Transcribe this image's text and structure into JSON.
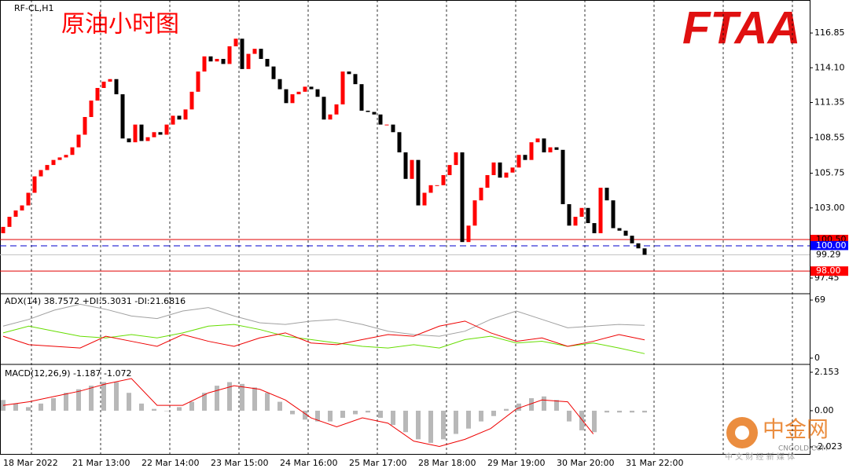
{
  "logo": "FTAA",
  "watermark": {
    "name": "中金网",
    "site": "CNGOLD.COM",
    "tagline": "中 文 财 经 新 媒 体"
  },
  "chart_data": [
    {
      "type": "candlestick",
      "title": "RF-CL,H1",
      "subtitle": "原油小时图",
      "categories": [
        "18 Mar 2022",
        null,
        null,
        null,
        null,
        null,
        null,
        null,
        null,
        null,
        null,
        "21 Mar 13:00",
        null,
        null,
        null,
        null,
        null,
        null,
        null,
        null,
        null,
        null,
        "22 Mar 14:00",
        null,
        null,
        null,
        null,
        null,
        null,
        null,
        null,
        null,
        null,
        "23 Mar 15:00",
        null,
        null,
        null,
        null,
        null,
        null,
        null,
        null,
        null,
        null,
        "24 Mar 16:00",
        null,
        null,
        null,
        null,
        null,
        null,
        null,
        null,
        null,
        null,
        "25 Mar 17:00",
        null,
        null,
        null,
        null,
        null,
        null,
        null,
        null,
        null,
        null,
        "28 Mar 18:00",
        null,
        null,
        null,
        null,
        null,
        null,
        null,
        null,
        null,
        null,
        "29 Mar 19:00",
        null,
        null,
        null,
        null,
        null,
        null,
        null,
        null,
        null,
        null,
        "30 Mar 20:00",
        null,
        null,
        null,
        null,
        null,
        null,
        null,
        null,
        null,
        null,
        "31 Mar 22:00",
        null,
        null,
        null
      ],
      "open": [
        101.0,
        101.5,
        102.3,
        102.8,
        103.2,
        104.2,
        105.5,
        106.0,
        106.4,
        106.8,
        107.0,
        107.2,
        107.8,
        108.8,
        110.2,
        111.5,
        112.5,
        113.0,
        113.2,
        112.0,
        108.5,
        108.2,
        109.6,
        108.3,
        108.6,
        109.0,
        108.8,
        109.6,
        110.3,
        110.0,
        110.8,
        112.2,
        113.8,
        115.0,
        114.6,
        114.8,
        114.4,
        115.8,
        116.4,
        114.0,
        115.2,
        115.6,
        114.8,
        114.2,
        113.2,
        112.4,
        111.3,
        112.0,
        112.2,
        112.6,
        112.4,
        111.8,
        110.0,
        110.4,
        111.2,
        113.8,
        113.6,
        112.8,
        110.7,
        110.6,
        110.4,
        109.6,
        109.6,
        109.0,
        107.4,
        105.3,
        106.8,
        103.2,
        104.2,
        104.8,
        104.8,
        105.6,
        106.4,
        107.4,
        100.3,
        101.6,
        103.6,
        104.6,
        105.6,
        106.6,
        105.4,
        105.8,
        106.2,
        107.2,
        106.8,
        108.2,
        108.5,
        107.4,
        107.8,
        107.6,
        103.3,
        101.6,
        102.3,
        103.0,
        101.8,
        101.0,
        104.6,
        103.6,
        101.4,
        101.2,
        100.8,
        100.2,
        99.8
      ],
      "close": [
        101.5,
        102.3,
        102.8,
        103.2,
        104.2,
        105.5,
        106.0,
        106.4,
        106.8,
        107.0,
        107.2,
        107.8,
        108.8,
        110.2,
        111.5,
        112.5,
        113.0,
        113.2,
        112.0,
        108.5,
        108.2,
        109.6,
        108.3,
        108.6,
        109.0,
        108.8,
        109.6,
        110.3,
        110.0,
        110.8,
        112.2,
        113.8,
        115.0,
        114.6,
        114.8,
        114.4,
        115.8,
        116.4,
        114.0,
        115.2,
        115.6,
        114.8,
        114.2,
        113.2,
        112.4,
        111.3,
        112.0,
        112.2,
        112.6,
        112.4,
        111.8,
        110.0,
        110.4,
        111.2,
        113.8,
        113.6,
        112.8,
        110.7,
        110.6,
        110.4,
        109.6,
        109.6,
        109.0,
        107.4,
        105.3,
        106.8,
        103.2,
        104.2,
        104.8,
        104.8,
        105.6,
        106.4,
        107.4,
        100.3,
        101.6,
        103.6,
        104.6,
        105.6,
        106.6,
        105.4,
        105.8,
        106.2,
        107.2,
        106.8,
        108.2,
        108.5,
        107.4,
        107.8,
        107.6,
        103.3,
        101.6,
        102.3,
        103.0,
        101.8,
        101.0,
        104.6,
        103.6,
        101.4,
        101.2,
        100.8,
        100.2,
        99.8,
        99.29
      ],
      "up_color": "#ff0000",
      "down_color": "#000000",
      "ylim": [
        96.27,
        119.34
      ],
      "yticks": [
        {
          "value": 97.45,
          "label": "97.45"
        },
        {
          "value": 103,
          "label": "103.00"
        },
        105.75,
        108.55,
        111.35,
        {
          "value": 114.1,
          "label": "114.10"
        },
        116.85
      ],
      "levels": [
        {
          "value": 100.5,
          "label": "100.50",
          "color": "#e00000",
          "dashed": false,
          "label_bg": "#ff0000",
          "label_color": "#000000"
        },
        {
          "value": 100,
          "label": "100.00",
          "color": "#0000cc",
          "dashed": true,
          "label_bg": "#0000ff",
          "label_color": "#ffffff"
        },
        {
          "value": 99.29,
          "label": "99.29",
          "color": "#c0c0c0",
          "dashed": false,
          "label_bg": "#ffffff",
          "label_color": "#000000"
        },
        {
          "value": 98,
          "label": "98.00",
          "color": "#e00000",
          "dashed": false,
          "label_bg": "#ff0000",
          "label_color": "#ffffff"
        }
      ]
    },
    {
      "type": "line",
      "title": "ADX(14) 38.7572 +DI:5.3031 -DI:21.6816",
      "ylim": [
        -5.6,
        73.7
      ],
      "yticks": [
        0,
        69
      ],
      "series": [
        {
          "color": "#a0a0a0",
          "values": [
            38,
            46,
            57,
            64,
            58,
            50,
            47,
            56,
            60,
            50,
            42,
            40,
            44,
            46,
            40,
            32,
            28,
            26,
            32,
            46,
            56,
            46,
            36,
            38,
            40,
            39
          ]
        },
        {
          "color": "#66dd00",
          "values": [
            30,
            38,
            32,
            26,
            24,
            28,
            24,
            30,
            38,
            40,
            34,
            26,
            22,
            18,
            14,
            12,
            16,
            12,
            22,
            26,
            18,
            20,
            14,
            18,
            12,
            5.3
          ]
        },
        {
          "color": "#ee0000",
          "values": [
            26,
            16,
            14,
            12,
            26,
            20,
            14,
            28,
            20,
            14,
            24,
            30,
            18,
            16,
            22,
            28,
            26,
            38,
            44,
            30,
            20,
            24,
            14,
            20,
            28,
            21.7
          ]
        }
      ]
    },
    {
      "type": "macd",
      "title": "MACD(12,26,9) -1.187 -1.072",
      "ylim": [
        -2.42,
        2.46
      ],
      "yticks": [
        2.153,
        {
          "value": 0,
          "label": "0.00"
        },
        -2.023
      ],
      "histogram_color": "#b8b8b8",
      "signal_color": "#ee0000",
      "histogram": [
        0.6,
        0.4,
        0.2,
        0.4,
        0.7,
        1.0,
        1.2,
        1.4,
        1.6,
        1.6,
        1.0,
        0.4,
        0.1,
        0.0,
        0.2,
        0.5,
        1.0,
        1.4,
        1.6,
        1.5,
        1.3,
        1.0,
        0.5,
        -0.2,
        -0.5,
        -0.6,
        -0.6,
        -0.4,
        -0.2,
        -0.1,
        -0.4,
        -0.8,
        -1.2,
        -1.6,
        -1.8,
        -1.6,
        -1.3,
        -1.0,
        -0.6,
        -0.3,
        0.1,
        0.4,
        0.7,
        0.8,
        0.6,
        -0.6,
        -1.1,
        -1.2,
        -0.1,
        -0.1,
        -0.1,
        -0.1
      ],
      "signal": [
        0.3,
        0.5,
        0.8,
        1.1,
        1.5,
        1.8,
        0.3,
        0.3,
        1.0,
        1.4,
        1.2,
        0.6,
        -0.4,
        -0.9,
        -0.4,
        -0.7,
        -1.7,
        -2.0,
        -1.6,
        -1.0,
        0.1,
        0.6,
        0.5,
        -1.3,
        null,
        null
      ]
    }
  ]
}
